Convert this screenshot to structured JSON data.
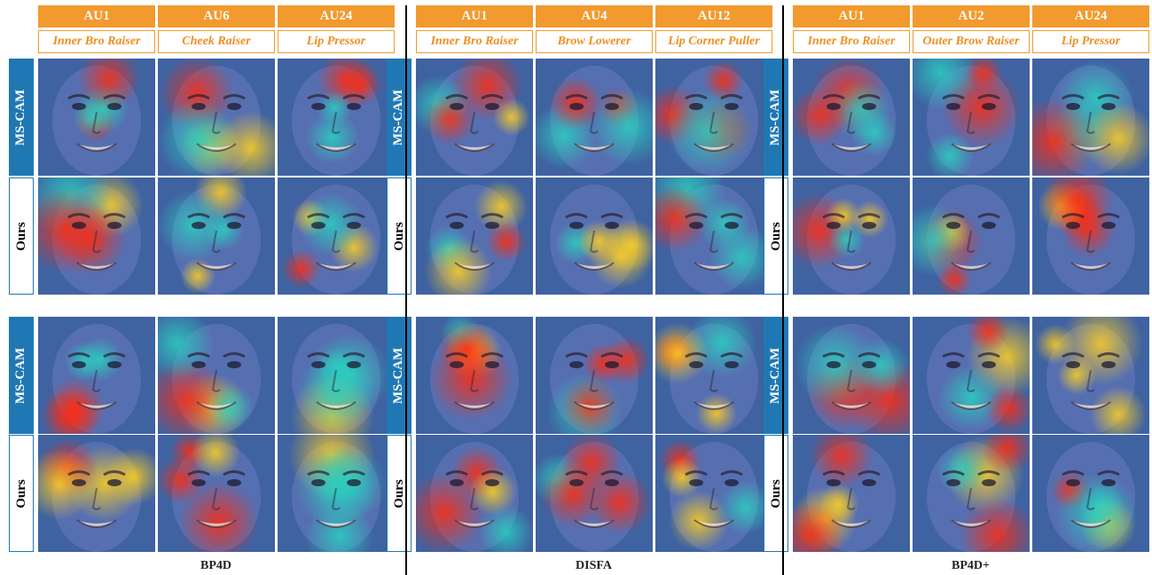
{
  "row_labels": {
    "mscam": "MS-CAM",
    "ours": "Ours"
  },
  "datasets": [
    {
      "name": "BP4D",
      "aus": [
        {
          "code": "AU1",
          "name": "Inner Bro Raiser"
        },
        {
          "code": "AU6",
          "name": "Cheek Raiser"
        },
        {
          "code": "AU24",
          "name": "Lip Pressor"
        }
      ]
    },
    {
      "name": "DISFA",
      "aus": [
        {
          "code": "AU1",
          "name": "Inner Bro Raiser"
        },
        {
          "code": "AU4",
          "name": "Brow Lowerer"
        },
        {
          "code": "AU12",
          "name": "Lip Corner Puller"
        }
      ]
    },
    {
      "name": "BP4D+",
      "aus": [
        {
          "code": "AU1",
          "name": "Inner Bro Raiser"
        },
        {
          "code": "AU2",
          "name": "Outer Brow Raiser"
        },
        {
          "code": "AU24",
          "name": "Lip Pressor"
        }
      ]
    }
  ],
  "colors": {
    "header_bg": "#f29a2e",
    "au_name_text": "#ef8f22",
    "mscam_label_bg": "#1f78b4"
  }
}
